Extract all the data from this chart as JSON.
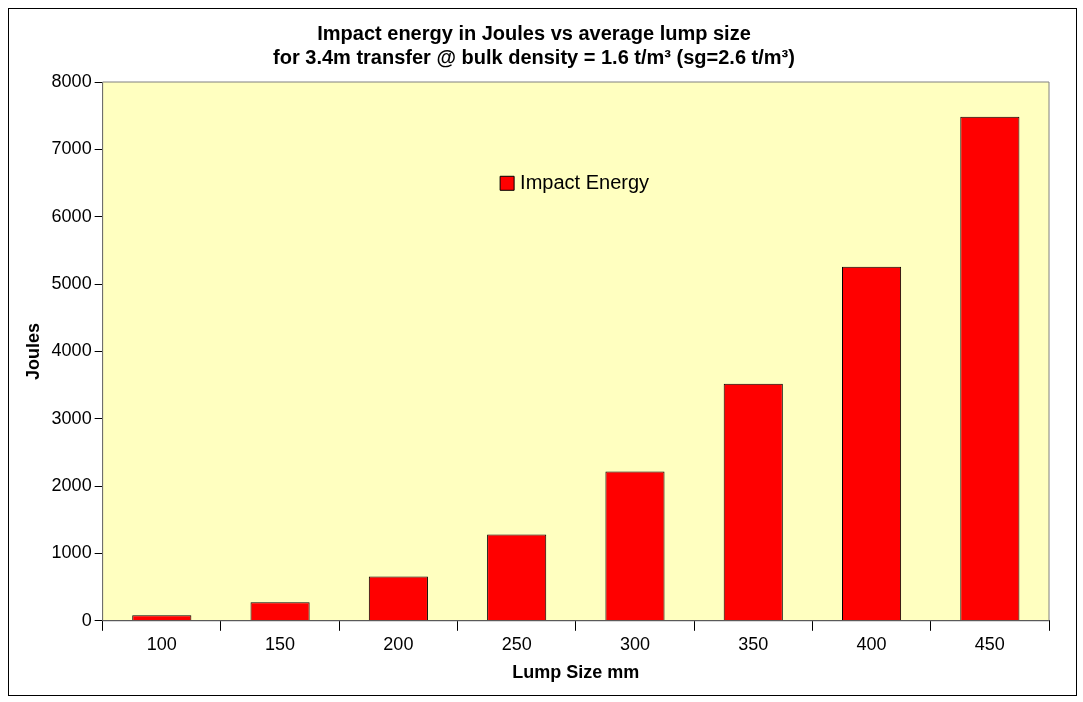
{
  "chart_data": {
    "type": "bar",
    "title": "Impact energy in Joules vs average lump size\nfor 3.4m transfer @ bulk density = 1.6 t/m³ (sg=2.6 t/m³)",
    "xlabel": "Lump Size mm",
    "ylabel": "Joules",
    "categories": [
      "100",
      "150",
      "200",
      "250",
      "300",
      "350",
      "400",
      "450"
    ],
    "series": [
      {
        "name": "Impact Energy",
        "color": "#ff0000",
        "values": [
          82,
          277,
          657,
          1283,
          2217,
          3521,
          5256,
          7484
        ]
      }
    ],
    "ylim": [
      0,
      8000
    ],
    "yticks": [
      0,
      1000,
      2000,
      3000,
      4000,
      5000,
      6000,
      7000,
      8000
    ],
    "grid": false,
    "legend": "top"
  }
}
